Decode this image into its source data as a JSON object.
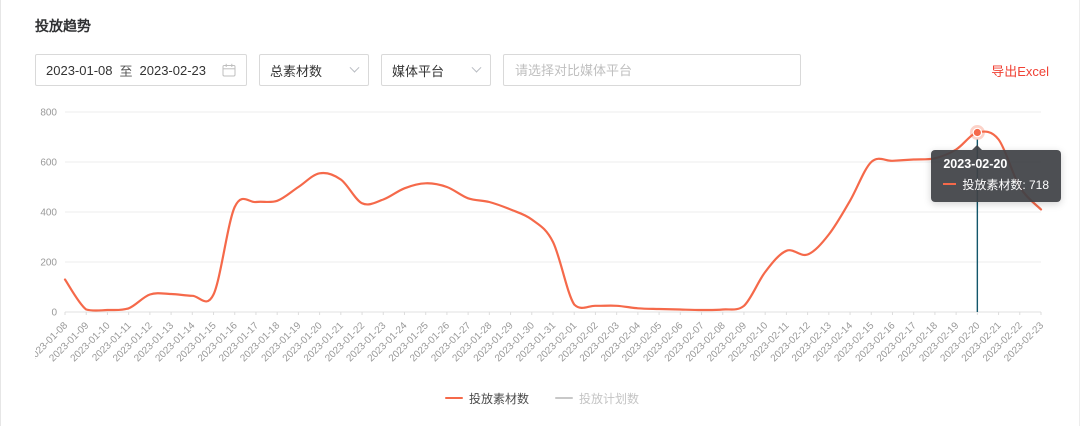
{
  "header": {
    "title": "投放趋势"
  },
  "toolbar": {
    "date_start": "2023-01-08",
    "date_separator": "至",
    "date_end": "2023-02-23",
    "metric_select": {
      "value": "总素材数"
    },
    "platform_select": {
      "value": "媒体平台"
    },
    "compare_input_placeholder": "请选择对比媒体平台",
    "export_label": "导出Excel"
  },
  "colors": {
    "line": "#f5694a",
    "plan": "#c8c8c8",
    "export": "#f04134",
    "pointer": "#12566b",
    "grid": "#eeeeee",
    "axis_line": "#e0e0e0",
    "axis_label": "#999999"
  },
  "chart_data": {
    "type": "line",
    "title": "",
    "xlabel": "",
    "ylabel": "",
    "smooth": true,
    "grid": true,
    "legend_position": "bottom",
    "ylim": [
      0,
      800
    ],
    "yticks": [
      0,
      200,
      400,
      600,
      800
    ],
    "categories": [
      "2023-01-08",
      "2023-01-09",
      "2023-01-10",
      "2023-01-11",
      "2023-01-12",
      "2023-01-13",
      "2023-01-14",
      "2023-01-15",
      "2023-01-16",
      "2023-01-17",
      "2023-01-18",
      "2023-01-19",
      "2023-01-20",
      "2023-01-21",
      "2023-01-22",
      "2023-01-23",
      "2023-01-24",
      "2023-01-25",
      "2023-01-26",
      "2023-01-27",
      "2023-01-28",
      "2023-01-29",
      "2023-01-30",
      "2023-01-31",
      "2023-02-01",
      "2023-02-02",
      "2023-02-03",
      "2023-02-04",
      "2023-02-05",
      "2023-02-06",
      "2023-02-07",
      "2023-02-08",
      "2023-02-09",
      "2023-02-10",
      "2023-02-11",
      "2023-02-12",
      "2023-02-13",
      "2023-02-14",
      "2023-02-15",
      "2023-02-16",
      "2023-02-17",
      "2023-02-18",
      "2023-02-19",
      "2023-02-20",
      "2023-02-21",
      "2023-02-22",
      "2023-02-23"
    ],
    "series": [
      {
        "name": "投放素材数",
        "color": "#f5694a",
        "values": [
          130,
          10,
          8,
          15,
          70,
          72,
          65,
          70,
          420,
          440,
          445,
          500,
          555,
          530,
          435,
          450,
          495,
          515,
          500,
          455,
          440,
          410,
          370,
          280,
          30,
          25,
          25,
          15,
          12,
          10,
          8,
          10,
          25,
          160,
          245,
          230,
          310,
          445,
          600,
          605,
          610,
          615,
          650,
          718,
          690,
          500,
          410
        ]
      },
      {
        "name": "投放计划数",
        "color": "#c8c8c8",
        "values": []
      }
    ],
    "tooltip": {
      "title": "2023-02-20",
      "series": "投放素材数",
      "value": 718,
      "label": "投放素材数: 718"
    }
  }
}
